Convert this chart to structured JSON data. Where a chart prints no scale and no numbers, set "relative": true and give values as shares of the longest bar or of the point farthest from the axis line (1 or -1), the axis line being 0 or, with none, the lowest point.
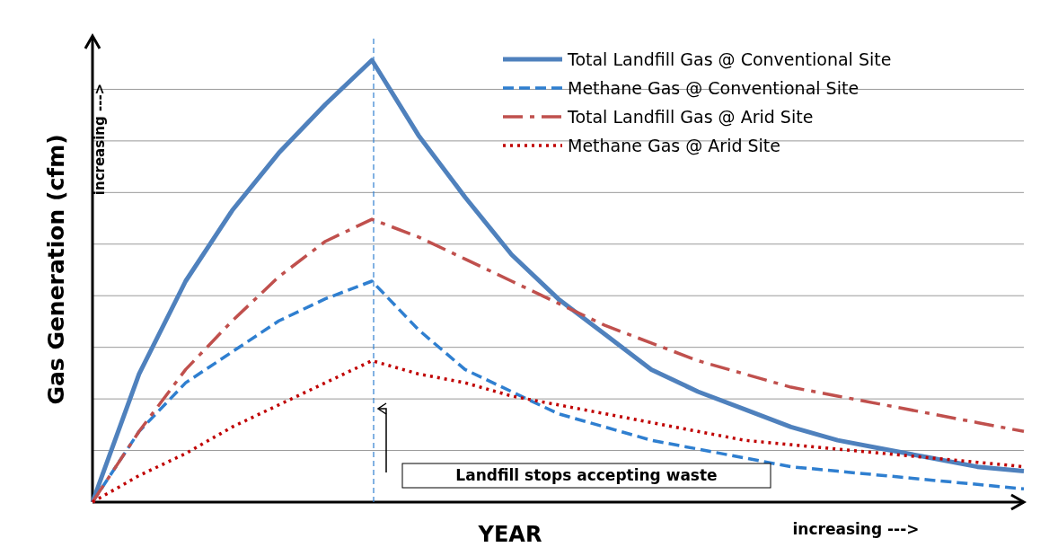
{
  "chart_data": {
    "type": "line",
    "relative": true,
    "xlabel": "YEAR",
    "ylabel": "Gas Generation  (cfm)",
    "categories": [
      null,
      null,
      null,
      null,
      null,
      null,
      null,
      null,
      null,
      null,
      null,
      null,
      null,
      null,
      null,
      null,
      null,
      null,
      null,
      null,
      null
    ],
    "series": [
      {
        "name": "Total Landfill Gas @ Conventional Site",
        "color": "#4f81bd",
        "line_style": "solid",
        "values": [
          0,
          0.29,
          0.5,
          0.66,
          0.79,
          0.9,
          1,
          0.83,
          0.69,
          0.56,
          0.46,
          0.38,
          0.3,
          0.25,
          0.21,
          0.17,
          0.14,
          0.12,
          0.1,
          0.08,
          0.07
        ]
      },
      {
        "name": "Methane Gas @ Conventional Site",
        "color": "#2f7fd0",
        "line_style": "dashed",
        "values": [
          0,
          0.16,
          0.27,
          0.34,
          0.41,
          0.46,
          0.5,
          0.39,
          0.3,
          0.25,
          0.2,
          0.17,
          0.14,
          0.12,
          0.1,
          0.08,
          0.07,
          0.06,
          0.05,
          0.04,
          0.03
        ]
      },
      {
        "name": "Total Landfill Gas @ Arid Site",
        "color": "#c0504d",
        "line_style": "dashdot",
        "values": [
          0,
          0.16,
          0.3,
          0.41,
          0.51,
          0.59,
          0.64,
          0.6,
          0.55,
          0.5,
          0.45,
          0.4,
          0.36,
          0.32,
          0.29,
          0.26,
          0.24,
          0.22,
          0.2,
          0.18,
          0.16
        ]
      },
      {
        "name": "Methane Gas @ Arid Site",
        "color": "#c00000",
        "line_style": "dotted",
        "values": [
          0,
          0.06,
          0.11,
          0.17,
          0.22,
          0.27,
          0.32,
          0.29,
          0.27,
          0.24,
          0.22,
          0.2,
          0.18,
          0.16,
          0.14,
          0.13,
          0.12,
          0.11,
          0.1,
          0.09,
          0.08
        ]
      }
    ],
    "annotations": [
      "Landfill stops accepting waste",
      "increasing --->",
      "increasing --->"
    ],
    "legend": "top right",
    "marker": "none"
  }
}
